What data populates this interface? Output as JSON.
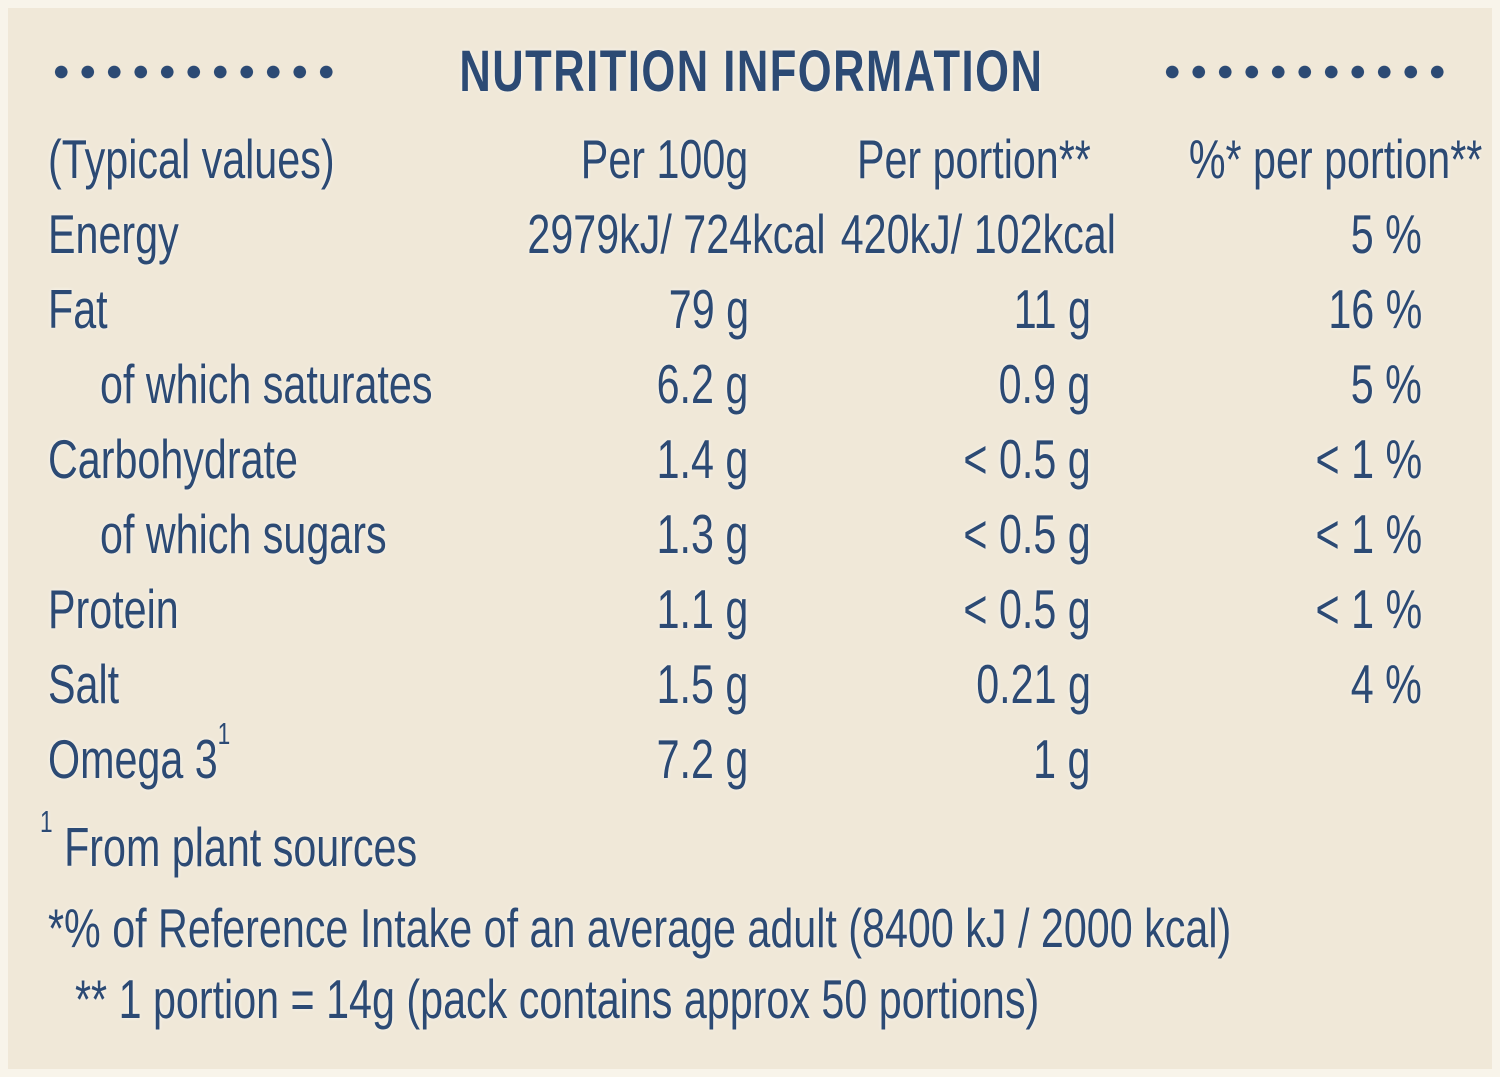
{
  "colors": {
    "ink": "#2c4a74",
    "background": "#f0e8d8"
  },
  "title": "NUTRITION INFORMATION",
  "header": {
    "typical_values": "(Typical values)",
    "per_100g": "Per 100g",
    "per_portion": "Per portion**",
    "pct_per_portion": "%* per portion**"
  },
  "rows": [
    {
      "label": "Energy",
      "per_100g": "2979kJ/ 724kcal",
      "per_portion": "420kJ/ 102kcal",
      "pct": "5 %"
    },
    {
      "label": "Fat",
      "per_100g": "79 g",
      "per_portion": "11 g",
      "pct": "16 %"
    },
    {
      "label": "of which saturates",
      "per_100g": "6.2 g",
      "per_portion": "0.9 g",
      "pct": "5 %"
    },
    {
      "label": "Carbohydrate",
      "per_100g": "1.4 g",
      "per_portion": "< 0.5 g",
      "pct": "< 1 %"
    },
    {
      "label": "of which sugars",
      "per_100g": "1.3 g",
      "per_portion": "< 0.5 g",
      "pct": "< 1 %"
    },
    {
      "label": "Protein",
      "per_100g": "1.1 g",
      "per_portion": "< 0.5 g",
      "pct": "< 1 %"
    },
    {
      "label": "Salt",
      "per_100g": "1.5 g",
      "per_portion": "0.21 g",
      "pct": "4 %"
    },
    {
      "label": "Omega 3",
      "sup": "1",
      "per_100g": "7.2 g",
      "per_portion": "1 g",
      "pct": ""
    }
  ],
  "footnotes": {
    "plant_sources_sup": "1",
    "plant_sources": "From plant sources",
    "reference_intake": "*% of Reference Intake of an average adult (8400 kJ / 2000 kcal)",
    "portion_definition": "** 1 portion = 14g (pack contains approx 50 portions)"
  }
}
